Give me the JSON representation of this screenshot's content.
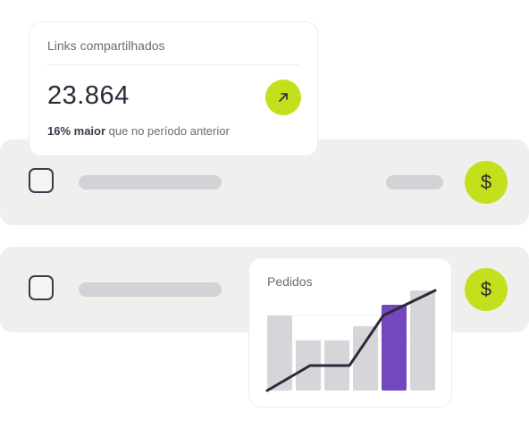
{
  "stat_card": {
    "title": "Links compartilhados",
    "value": "23.864",
    "delta_highlight": "16% maior",
    "delta_rest": " que no período anterior",
    "trend_icon": "arrow-up-right-icon"
  },
  "rows": [
    {
      "currency_symbol": "$"
    },
    {
      "currency_symbol": "$"
    }
  ],
  "colors": {
    "accent_lime": "#c4e01c",
    "accent_purple": "#7347c0",
    "bar_gray": "#d6d6da",
    "line_dark": "#2d2a3a"
  },
  "chart_data": {
    "type": "bar",
    "title": "Pedidos",
    "categories": [
      "",
      "",
      "",
      "",
      "",
      ""
    ],
    "values": [
      84,
      56,
      56,
      72,
      96,
      112
    ],
    "highlight_index": 4,
    "ylim": [
      0,
      112
    ],
    "line": [
      0,
      28,
      28,
      28,
      84,
      112
    ],
    "grid": true
  }
}
